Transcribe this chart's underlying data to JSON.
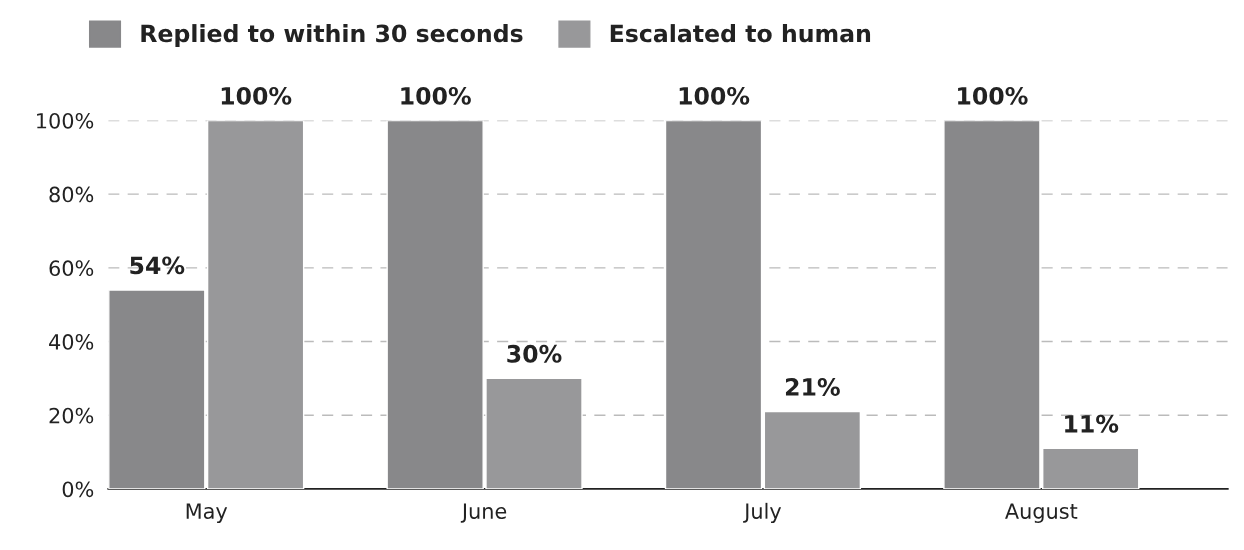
{
  "chart_data": {
    "type": "bar",
    "categories": [
      "May",
      "June",
      "July",
      "August"
    ],
    "series": [
      {
        "name": "Replied to within 30 seconds",
        "color": "#88888a",
        "values": [
          54,
          100,
          100,
          100
        ],
        "value_labels": [
          "54%",
          "100%",
          "100%",
          "100%"
        ]
      },
      {
        "name": "Escalated to human",
        "color": "#98989a",
        "values": [
          100,
          30,
          21,
          11
        ],
        "value_labels": [
          "100%",
          "30%",
          "21%",
          "11%"
        ]
      }
    ],
    "ylim": [
      0,
      100
    ],
    "yticks": [
      {
        "value": 0,
        "label": "0%"
      },
      {
        "value": 20,
        "label": "20%"
      },
      {
        "value": 40,
        "label": "40%"
      },
      {
        "value": 60,
        "label": "60%"
      },
      {
        "value": 80,
        "label": "80%"
      },
      {
        "value": 100,
        "label": "100%"
      }
    ],
    "grid": "y",
    "legend": "top left"
  }
}
